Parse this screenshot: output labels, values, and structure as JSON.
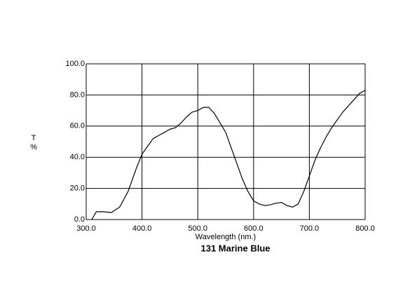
{
  "chart_data": {
    "type": "line",
    "title": "131 Marine Blue",
    "xlabel": "Wavelength (nm.)",
    "ylabel_lines": [
      "T",
      "%"
    ],
    "x": [
      310,
      318,
      330,
      345,
      360,
      375,
      390,
      400,
      410,
      420,
      430,
      440,
      450,
      460,
      470,
      480,
      490,
      500,
      510,
      520,
      530,
      540,
      550,
      560,
      570,
      580,
      590,
      600,
      610,
      620,
      630,
      640,
      650,
      660,
      670,
      680,
      690,
      700,
      710,
      720,
      730,
      740,
      750,
      760,
      770,
      780,
      790,
      800
    ],
    "series": [
      {
        "color": "#000000",
        "values": [
          0,
          5,
          5,
          4.5,
          8,
          18,
          33,
          42,
          47,
          52,
          54,
          56,
          58,
          59,
          62,
          66,
          69,
          70,
          72,
          72,
          68,
          62,
          56,
          46,
          36,
          26,
          18,
          12,
          10,
          9,
          9.5,
          10.5,
          11,
          9,
          8,
          10,
          18,
          28,
          38,
          46,
          53,
          59,
          64,
          69,
          73,
          77,
          81,
          83
        ]
      }
    ],
    "xlim": [
      300,
      800
    ],
    "ylim": [
      0,
      100
    ],
    "xticks": [
      {
        "value": 300,
        "label": "300.0"
      },
      {
        "value": 400,
        "label": "400.0"
      },
      {
        "value": 500,
        "label": "500.0"
      },
      {
        "value": 600,
        "label": "600.0"
      },
      {
        "value": 700,
        "label": "700.0"
      },
      {
        "value": 800,
        "label": "800.0"
      }
    ],
    "yticks": [
      {
        "value": 0,
        "label": "0.0"
      },
      {
        "value": 20,
        "label": "20.0"
      },
      {
        "value": 40,
        "label": "40.0"
      },
      {
        "value": 60,
        "label": "60.0"
      },
      {
        "value": 80,
        "label": "80.0"
      },
      {
        "value": 100,
        "label": "100.0"
      }
    ],
    "grid": true
  }
}
